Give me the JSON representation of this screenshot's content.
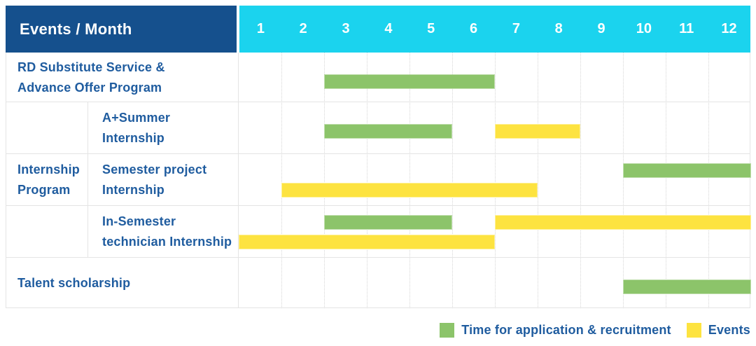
{
  "header": {
    "title": "Events / Month",
    "months": [
      "1",
      "2",
      "3",
      "4",
      "5",
      "6",
      "7",
      "8",
      "9",
      "10",
      "11",
      "12"
    ]
  },
  "colors": {
    "header_blue": "#15508d",
    "header_cyan": "#1bd3ee",
    "label_blue": "#1f5c9f",
    "recruitment_green": "#8cc46a",
    "event_yellow": "#fde340",
    "grid_line": "#e4e4e4"
  },
  "chart_data": {
    "type": "bar",
    "subtype": "gantt",
    "title": "Events / Month",
    "x_axis": {
      "label": "Month",
      "ticks": [
        "1",
        "2",
        "3",
        "4",
        "5",
        "6",
        "7",
        "8",
        "9",
        "10",
        "11",
        "12"
      ],
      "range": [
        1,
        12
      ]
    },
    "grid": true,
    "legend_position": "bottom-right",
    "series": [
      {
        "name": "Time for application & recruitment",
        "color": "#8cc46a"
      },
      {
        "name": "Events",
        "color": "#fde340"
      }
    ],
    "rows": [
      {
        "group": "",
        "label": "RD Substitute Service &\nAdvance Offer Program",
        "bars": [
          {
            "series": "Time for application & recruitment",
            "start_month": 3,
            "end_month": 6,
            "lane": "center"
          }
        ]
      },
      {
        "group": "Internship Program",
        "label": "A+Summer\nInternship",
        "bars": [
          {
            "series": "Time for application & recruitment",
            "start_month": 3,
            "end_month": 5,
            "lane": "center"
          },
          {
            "series": "Events",
            "start_month": 7,
            "end_month": 8,
            "lane": "center"
          }
        ]
      },
      {
        "group": "Internship Program",
        "label": "Semester project\nInternship",
        "bars": [
          {
            "series": "Time for application & recruitment",
            "start_month": 10,
            "end_month": 12,
            "lane": "top"
          },
          {
            "series": "Events",
            "start_month": 2,
            "end_month": 7,
            "lane": "bottom"
          }
        ]
      },
      {
        "group": "Internship Program",
        "label": "In-Semester\ntechnician Internship",
        "bars": [
          {
            "series": "Time for application & recruitment",
            "start_month": 3,
            "end_month": 5,
            "lane": "top"
          },
          {
            "series": "Events",
            "start_month": 7,
            "end_month": 12,
            "lane": "top"
          },
          {
            "series": "Events",
            "start_month": 1,
            "end_month": 6,
            "lane": "bottom"
          }
        ]
      },
      {
        "group": "",
        "label": "Talent scholarship",
        "bars": [
          {
            "series": "Time for application & recruitment",
            "start_month": 10,
            "end_month": 12,
            "lane": "center"
          }
        ]
      }
    ]
  },
  "legend": {
    "items": [
      {
        "label": "Time for application & recruitment",
        "series": "Time for application & recruitment"
      },
      {
        "label": "Events",
        "series": "Events"
      }
    ]
  }
}
